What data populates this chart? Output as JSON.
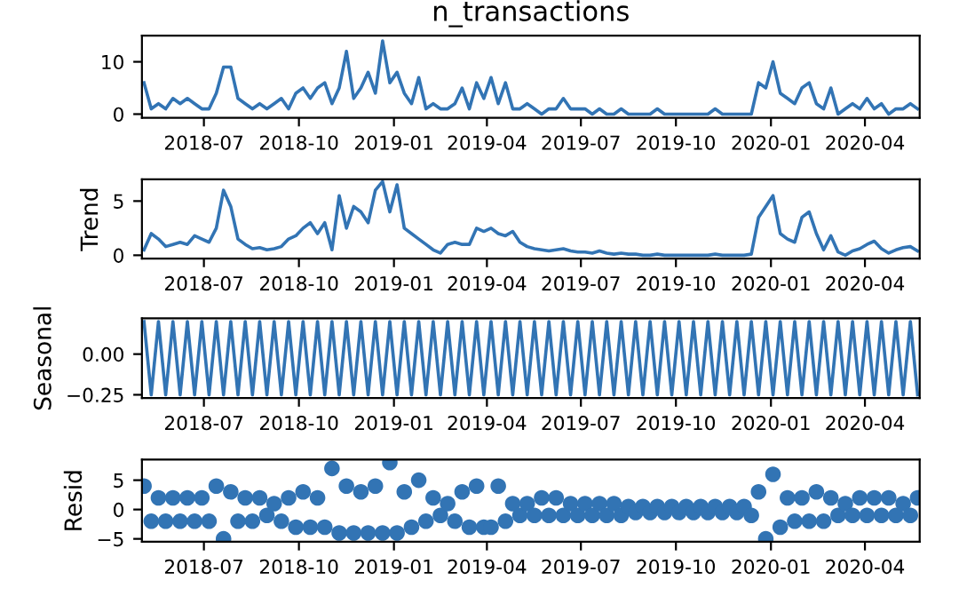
{
  "chart_data": [
    {
      "type": "line",
      "title": "n_transactions",
      "color": "#3274b4",
      "marker": "none",
      "x": [
        "2018-05-04",
        "2018-05-11",
        "2018-05-18",
        "2018-05-25",
        "2018-06-01",
        "2018-06-08",
        "2018-06-15",
        "2018-06-22",
        "2018-06-29",
        "2018-07-06",
        "2018-07-13",
        "2018-07-20",
        "2018-07-27",
        "2018-08-03",
        "2018-08-10",
        "2018-08-17",
        "2018-08-24",
        "2018-08-31",
        "2018-09-07",
        "2018-09-14",
        "2018-09-21",
        "2018-09-28",
        "2018-10-05",
        "2018-10-12",
        "2018-10-19",
        "2018-10-26",
        "2018-11-02",
        "2018-11-09",
        "2018-11-16",
        "2018-11-23",
        "2018-11-30",
        "2018-12-07",
        "2018-12-14",
        "2018-12-21",
        "2018-12-28",
        "2019-01-04",
        "2019-01-11",
        "2019-01-18",
        "2019-01-25",
        "2019-02-01",
        "2019-02-08",
        "2019-02-15",
        "2019-02-22",
        "2019-03-01",
        "2019-03-08",
        "2019-03-15",
        "2019-03-22",
        "2019-03-29",
        "2019-04-05",
        "2019-04-12",
        "2019-04-19",
        "2019-04-26",
        "2019-05-03",
        "2019-05-10",
        "2019-05-17",
        "2019-05-24",
        "2019-05-31",
        "2019-06-07",
        "2019-06-14",
        "2019-06-21",
        "2019-06-28",
        "2019-07-05",
        "2019-07-12",
        "2019-07-19",
        "2019-07-26",
        "2019-08-02",
        "2019-08-09",
        "2019-08-16",
        "2019-08-23",
        "2019-08-30",
        "2019-09-06",
        "2019-09-13",
        "2019-09-20",
        "2019-09-27",
        "2019-10-04",
        "2019-10-11",
        "2019-10-18",
        "2019-10-25",
        "2019-11-01",
        "2019-11-08",
        "2019-11-15",
        "2019-11-22",
        "2019-11-29",
        "2019-12-06",
        "2019-12-13",
        "2019-12-20",
        "2019-12-27",
        "2020-01-03",
        "2020-01-10",
        "2020-01-17",
        "2020-01-24",
        "2020-01-31",
        "2020-02-07",
        "2020-02-14",
        "2020-02-21",
        "2020-02-28",
        "2020-03-06",
        "2020-03-13",
        "2020-03-20",
        "2020-03-27",
        "2020-04-03",
        "2020-04-10",
        "2020-04-17",
        "2020-04-24",
        "2020-05-01",
        "2020-05-08",
        "2020-05-15",
        "2020-05-22"
      ],
      "values": [
        6,
        1,
        2,
        1,
        3,
        2,
        3,
        2,
        1,
        1,
        4,
        9,
        9,
        3,
        2,
        1,
        2,
        1,
        2,
        3,
        1,
        4,
        5,
        3,
        5,
        6,
        2,
        5,
        12,
        3,
        5,
        8,
        4,
        14,
        6,
        8,
        4,
        2,
        7,
        1,
        2,
        1,
        1,
        2,
        5,
        1,
        6,
        3,
        7,
        2,
        6,
        1,
        1,
        2,
        1,
        0,
        1,
        1,
        3,
        1,
        1,
        1,
        0,
        1,
        0,
        0,
        1,
        0,
        0,
        0,
        0,
        1,
        0,
        0,
        0,
        0,
        0,
        0,
        0,
        1,
        0,
        0,
        0,
        0,
        0,
        6,
        5,
        10,
        4,
        3,
        2,
        5,
        6,
        2,
        1,
        5,
        0,
        1,
        2,
        1,
        3,
        1,
        2,
        0,
        1,
        1,
        2,
        1
      ],
      "xlim": [
        "2018-05-02",
        "2020-05-24"
      ],
      "ylim": [
        -0.7,
        15
      ],
      "xticks": [
        {
          "value": "2018-07-01",
          "label": "2018-07"
        },
        {
          "value": "2018-10-01",
          "label": "2018-10"
        },
        {
          "value": "2019-01-01",
          "label": "2019-01"
        },
        {
          "value": "2019-04-01",
          "label": "2019-04"
        },
        {
          "value": "2019-07-01",
          "label": "2019-07"
        },
        {
          "value": "2019-10-01",
          "label": "2019-10"
        },
        {
          "value": "2020-01-01",
          "label": "2020-01"
        },
        {
          "value": "2020-04-01",
          "label": "2020-04"
        }
      ],
      "yticks": [
        0,
        10
      ]
    },
    {
      "type": "line",
      "ylabel": "Trend",
      "color": "#3274b4",
      "marker": "none",
      "x": [
        "2018-05-04",
        "2018-05-11",
        "2018-05-18",
        "2018-05-25",
        "2018-06-01",
        "2018-06-08",
        "2018-06-15",
        "2018-06-22",
        "2018-06-29",
        "2018-07-06",
        "2018-07-13",
        "2018-07-20",
        "2018-07-27",
        "2018-08-03",
        "2018-08-10",
        "2018-08-17",
        "2018-08-24",
        "2018-08-31",
        "2018-09-07",
        "2018-09-14",
        "2018-09-21",
        "2018-09-28",
        "2018-10-05",
        "2018-10-12",
        "2018-10-19",
        "2018-10-26",
        "2018-11-02",
        "2018-11-09",
        "2018-11-16",
        "2018-11-23",
        "2018-11-30",
        "2018-12-07",
        "2018-12-14",
        "2018-12-21",
        "2018-12-28",
        "2019-01-04",
        "2019-01-11",
        "2019-01-18",
        "2019-01-25",
        "2019-02-01",
        "2019-02-08",
        "2019-02-15",
        "2019-02-22",
        "2019-03-01",
        "2019-03-08",
        "2019-03-15",
        "2019-03-22",
        "2019-03-29",
        "2019-04-05",
        "2019-04-12",
        "2019-04-19",
        "2019-04-26",
        "2019-05-03",
        "2019-05-10",
        "2019-05-17",
        "2019-05-24",
        "2019-05-31",
        "2019-06-07",
        "2019-06-14",
        "2019-06-21",
        "2019-06-28",
        "2019-07-05",
        "2019-07-12",
        "2019-07-19",
        "2019-07-26",
        "2019-08-02",
        "2019-08-09",
        "2019-08-16",
        "2019-08-23",
        "2019-08-30",
        "2019-09-06",
        "2019-09-13",
        "2019-09-20",
        "2019-09-27",
        "2019-10-04",
        "2019-10-11",
        "2019-10-18",
        "2019-10-25",
        "2019-11-01",
        "2019-11-08",
        "2019-11-15",
        "2019-11-22",
        "2019-11-29",
        "2019-12-06",
        "2019-12-13",
        "2019-12-20",
        "2019-12-27",
        "2020-01-03",
        "2020-01-10",
        "2020-01-17",
        "2020-01-24",
        "2020-01-31",
        "2020-02-07",
        "2020-02-14",
        "2020-02-21",
        "2020-02-28",
        "2020-03-06",
        "2020-03-13",
        "2020-03-20",
        "2020-03-27",
        "2020-04-03",
        "2020-04-10",
        "2020-04-17",
        "2020-04-24",
        "2020-05-01",
        "2020-05-08",
        "2020-05-15",
        "2020-05-22"
      ],
      "values": [
        0.5,
        2,
        1.5,
        0.8,
        1,
        1.2,
        1,
        1.8,
        1.5,
        1.2,
        2.5,
        6,
        4.5,
        1.5,
        1,
        0.6,
        0.7,
        0.5,
        0.6,
        0.8,
        1.5,
        1.8,
        2.5,
        3,
        2,
        3,
        0.5,
        5.5,
        2.5,
        4.5,
        4,
        3,
        6,
        6.8,
        4,
        6.5,
        2.5,
        2,
        1.5,
        1,
        0.5,
        0.2,
        1,
        1.2,
        1,
        1,
        2.5,
        2.2,
        2.5,
        2,
        1.8,
        2.2,
        1.2,
        0.8,
        0.6,
        0.5,
        0.4,
        0.5,
        0.6,
        0.4,
        0.3,
        0.3,
        0.2,
        0.4,
        0.2,
        0.1,
        0.2,
        0.1,
        0.1,
        0,
        0,
        0.1,
        0,
        0,
        0,
        0,
        0,
        0,
        0,
        0.1,
        0,
        0,
        0,
        0,
        0.1,
        3.5,
        4.5,
        5.5,
        2,
        1.5,
        1.2,
        3.5,
        4,
        2,
        0.5,
        1.8,
        0.3,
        0,
        0.4,
        0.6,
        1,
        1.3,
        0.6,
        0.2,
        0.5,
        0.7,
        0.8,
        0.4
      ],
      "xlim": [
        "2018-05-02",
        "2020-05-24"
      ],
      "ylim": [
        -0.3,
        7
      ],
      "xticks": [
        {
          "value": "2018-07-01",
          "label": "2018-07"
        },
        {
          "value": "2018-10-01",
          "label": "2018-10"
        },
        {
          "value": "2019-01-01",
          "label": "2019-01"
        },
        {
          "value": "2019-04-01",
          "label": "2019-04"
        },
        {
          "value": "2019-07-01",
          "label": "2019-07"
        },
        {
          "value": "2019-10-01",
          "label": "2019-10"
        },
        {
          "value": "2020-01-01",
          "label": "2020-01"
        },
        {
          "value": "2020-04-01",
          "label": "2020-04"
        }
      ],
      "yticks": [
        0,
        5
      ]
    },
    {
      "type": "line",
      "ylabel": "Seasonal",
      "color": "#3274b4",
      "marker": "none",
      "x": [
        "2018-05-04",
        "2018-05-11",
        "2018-05-18",
        "2018-05-25",
        "2018-06-01",
        "2018-06-08",
        "2018-06-15",
        "2018-06-22",
        "2018-06-29",
        "2018-07-06",
        "2018-07-13",
        "2018-07-20",
        "2018-07-27",
        "2018-08-03",
        "2018-08-10",
        "2018-08-17",
        "2018-08-24",
        "2018-08-31",
        "2018-09-07",
        "2018-09-14",
        "2018-09-21",
        "2018-09-28",
        "2018-10-05",
        "2018-10-12",
        "2018-10-19",
        "2018-10-26",
        "2018-11-02",
        "2018-11-09",
        "2018-11-16",
        "2018-11-23",
        "2018-11-30",
        "2018-12-07",
        "2018-12-14",
        "2018-12-21",
        "2018-12-28",
        "2019-01-04",
        "2019-01-11",
        "2019-01-18",
        "2019-01-25",
        "2019-02-01",
        "2019-02-08",
        "2019-02-15",
        "2019-02-22",
        "2019-03-01",
        "2019-03-08",
        "2019-03-15",
        "2019-03-22",
        "2019-03-29",
        "2019-04-05",
        "2019-04-12",
        "2019-04-19",
        "2019-04-26",
        "2019-05-03",
        "2019-05-10",
        "2019-05-17",
        "2019-05-24",
        "2019-05-31",
        "2019-06-07",
        "2019-06-14",
        "2019-06-21",
        "2019-06-28",
        "2019-07-05",
        "2019-07-12",
        "2019-07-19",
        "2019-07-26",
        "2019-08-02",
        "2019-08-09",
        "2019-08-16",
        "2019-08-23",
        "2019-08-30",
        "2019-09-06",
        "2019-09-13",
        "2019-09-20",
        "2019-09-27",
        "2019-10-04",
        "2019-10-11",
        "2019-10-18",
        "2019-10-25",
        "2019-11-01",
        "2019-11-08",
        "2019-11-15",
        "2019-11-22",
        "2019-11-29",
        "2019-12-06",
        "2019-12-13",
        "2019-12-20",
        "2019-12-27",
        "2020-01-03",
        "2020-01-10",
        "2020-01-17",
        "2020-01-24",
        "2020-01-31",
        "2020-02-07",
        "2020-02-14",
        "2020-02-21",
        "2020-02-28",
        "2020-03-06",
        "2020-03-13",
        "2020-03-20",
        "2020-03-27",
        "2020-04-03",
        "2020-04-10",
        "2020-04-17",
        "2020-04-24",
        "2020-05-01",
        "2020-05-08",
        "2020-05-15",
        "2020-05-22"
      ],
      "values": [
        0.2,
        -0.25,
        0.2,
        -0.25,
        0.2,
        -0.25,
        0.2,
        -0.25,
        0.2,
        -0.25,
        0.2,
        -0.25,
        0.2,
        -0.25,
        0.2,
        -0.25,
        0.2,
        -0.25,
        0.2,
        -0.25,
        0.2,
        -0.25,
        0.2,
        -0.25,
        0.2,
        -0.25,
        0.2,
        -0.25,
        0.2,
        -0.25,
        0.2,
        -0.25,
        0.2,
        -0.25,
        0.2,
        -0.25,
        0.2,
        -0.25,
        0.2,
        -0.25,
        0.2,
        -0.25,
        0.2,
        -0.25,
        0.2,
        -0.25,
        0.2,
        -0.25,
        0.2,
        -0.25,
        0.2,
        -0.25,
        0.2,
        -0.25,
        0.2,
        -0.25,
        0.2,
        -0.25,
        0.2,
        -0.25,
        0.2,
        -0.25,
        0.2,
        -0.25,
        0.2,
        -0.25,
        0.2,
        -0.25,
        0.2,
        -0.25,
        0.2,
        -0.25,
        0.2,
        -0.25,
        0.2,
        -0.25,
        0.2,
        -0.25,
        0.2,
        -0.25,
        0.2,
        -0.25,
        0.2,
        -0.25,
        0.2,
        -0.25,
        0.2,
        -0.25,
        0.2,
        -0.25,
        0.2,
        -0.25,
        0.2,
        -0.25,
        0.2,
        -0.25,
        0.2,
        -0.25,
        0.2,
        -0.25,
        0.2,
        -0.25,
        0.2,
        -0.25,
        0.2,
        -0.25,
        0.2,
        -0.25
      ],
      "xlim": [
        "2018-05-02",
        "2020-05-24"
      ],
      "ylim": [
        -0.27,
        0.22
      ],
      "xticks": [
        {
          "value": "2018-07-01",
          "label": "2018-07"
        },
        {
          "value": "2018-10-01",
          "label": "2018-10"
        },
        {
          "value": "2019-01-01",
          "label": "2019-01"
        },
        {
          "value": "2019-04-01",
          "label": "2019-04"
        },
        {
          "value": "2019-07-01",
          "label": "2019-07"
        },
        {
          "value": "2019-10-01",
          "label": "2019-10"
        },
        {
          "value": "2020-01-01",
          "label": "2020-01"
        },
        {
          "value": "2020-04-01",
          "label": "2020-04"
        }
      ],
      "yticks": [
        {
          "value": -0.25,
          "label": "−0.25"
        },
        {
          "value": 0,
          "label": "0.00"
        }
      ]
    },
    {
      "type": "scatter",
      "ylabel": "Resid",
      "color": "#3274b4",
      "marker": "circle",
      "x": [
        "2018-05-04",
        "2018-05-11",
        "2018-05-18",
        "2018-05-25",
        "2018-06-01",
        "2018-06-08",
        "2018-06-15",
        "2018-06-22",
        "2018-06-29",
        "2018-07-06",
        "2018-07-13",
        "2018-07-20",
        "2018-07-27",
        "2018-08-03",
        "2018-08-10",
        "2018-08-17",
        "2018-08-24",
        "2018-08-31",
        "2018-09-07",
        "2018-09-14",
        "2018-09-21",
        "2018-09-28",
        "2018-10-05",
        "2018-10-12",
        "2018-10-19",
        "2018-10-26",
        "2018-11-02",
        "2018-11-09",
        "2018-11-16",
        "2018-11-23",
        "2018-11-30",
        "2018-12-07",
        "2018-12-14",
        "2018-12-21",
        "2018-12-28",
        "2019-01-04",
        "2019-01-11",
        "2019-01-18",
        "2019-01-25",
        "2019-02-01",
        "2019-02-08",
        "2019-02-15",
        "2019-02-22",
        "2019-03-01",
        "2019-03-08",
        "2019-03-15",
        "2019-03-22",
        "2019-03-29",
        "2019-04-05",
        "2019-04-12",
        "2019-04-19",
        "2019-04-26",
        "2019-05-03",
        "2019-05-10",
        "2019-05-17",
        "2019-05-24",
        "2019-05-31",
        "2019-06-07",
        "2019-06-14",
        "2019-06-21",
        "2019-06-28",
        "2019-07-05",
        "2019-07-12",
        "2019-07-19",
        "2019-07-26",
        "2019-08-02",
        "2019-08-09",
        "2019-08-16",
        "2019-08-23",
        "2019-08-30",
        "2019-09-06",
        "2019-09-13",
        "2019-09-20",
        "2019-09-27",
        "2019-10-04",
        "2019-10-11",
        "2019-10-18",
        "2019-10-25",
        "2019-11-01",
        "2019-11-08",
        "2019-11-15",
        "2019-11-22",
        "2019-11-29",
        "2019-12-06",
        "2019-12-13",
        "2019-12-20",
        "2019-12-27",
        "2020-01-03",
        "2020-01-10",
        "2020-01-17",
        "2020-01-24",
        "2020-01-31",
        "2020-02-07",
        "2020-02-14",
        "2020-02-21",
        "2020-02-28",
        "2020-03-06",
        "2020-03-13",
        "2020-03-20",
        "2020-03-27",
        "2020-04-03",
        "2020-04-10",
        "2020-04-17",
        "2020-04-24",
        "2020-05-01",
        "2020-05-08",
        "2020-05-15",
        "2020-05-22"
      ],
      "values": [
        4,
        -2,
        2,
        -2,
        2,
        -2,
        2,
        -2,
        2,
        -2,
        4,
        -5,
        3,
        -2,
        2,
        -2,
        2,
        -1,
        1,
        -2,
        2,
        -3,
        3,
        -3,
        2,
        -3,
        7,
        -4,
        4,
        -4,
        3,
        -4,
        4,
        -4,
        8,
        -4,
        3,
        -3,
        5,
        -2,
        2,
        -1,
        1,
        -2,
        3,
        -3,
        4,
        -3,
        -3,
        4,
        -2,
        1,
        -1,
        1,
        -1,
        2,
        -1,
        2,
        -1,
        1,
        -1,
        1,
        -1,
        1,
        -1,
        1,
        -1,
        0.5,
        -0.5,
        0.5,
        -0.5,
        0.5,
        -0.5,
        0.5,
        -0.5,
        0.5,
        -0.5,
        0.5,
        -0.5,
        0.5,
        -0.5,
        0.5,
        -0.5,
        0.5,
        -1,
        3,
        -5,
        6,
        -3,
        2,
        -2,
        2,
        -2,
        3,
        -2,
        2,
        -1,
        1,
        -1,
        2,
        -1,
        2,
        -1,
        2,
        -1,
        1,
        -1,
        2
      ],
      "xlim": [
        "2018-05-02",
        "2020-05-24"
      ],
      "ylim": [
        -5.5,
        8.5
      ],
      "xticks": [
        {
          "value": "2018-07-01",
          "label": "2018-07"
        },
        {
          "value": "2018-10-01",
          "label": "2018-10"
        },
        {
          "value": "2019-01-01",
          "label": "2019-01"
        },
        {
          "value": "2019-04-01",
          "label": "2019-04"
        },
        {
          "value": "2019-07-01",
          "label": "2019-07"
        },
        {
          "value": "2019-10-01",
          "label": "2019-10"
        },
        {
          "value": "2020-01-01",
          "label": "2020-01"
        },
        {
          "value": "2020-04-01",
          "label": "2020-04"
        }
      ],
      "yticks": [
        {
          "value": -5,
          "label": "−5"
        },
        0,
        5
      ]
    }
  ]
}
